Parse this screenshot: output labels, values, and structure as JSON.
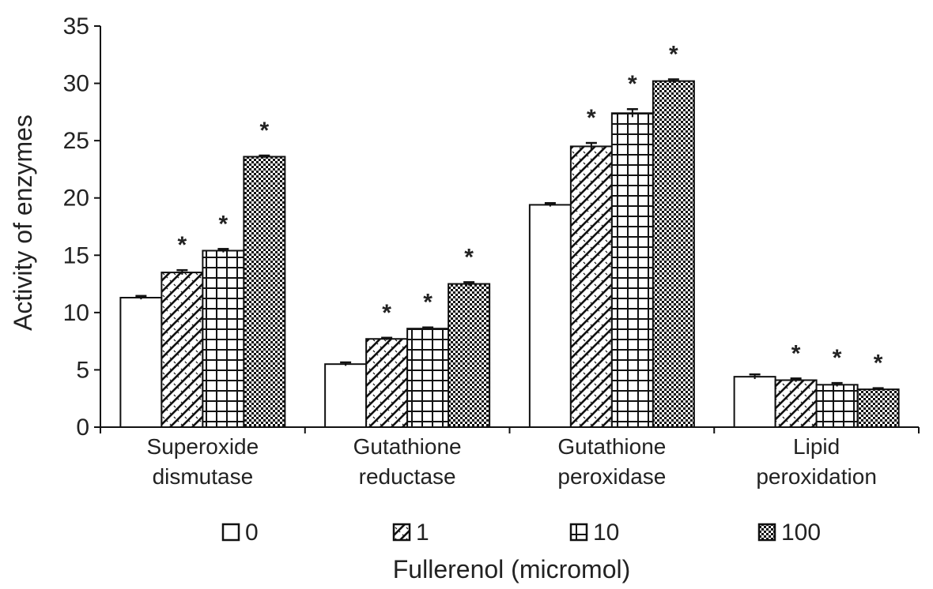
{
  "chart_data": {
    "type": "bar",
    "title": "",
    "ylabel": "Activity of enzymes",
    "xlabel": "Fullerenol (micromol)",
    "ylim": [
      0,
      35
    ],
    "yticks": [
      0,
      5,
      10,
      15,
      20,
      25,
      30,
      35
    ],
    "grid": false,
    "legend_position": "bottom",
    "categories": [
      [
        "Superoxide",
        "dismutase"
      ],
      [
        "Gutathione",
        "reductase"
      ],
      [
        "Gutathione",
        "peroxidase"
      ],
      [
        "Lipid",
        "peroxidation"
      ]
    ],
    "series": [
      {
        "name": "0",
        "pattern": "blank",
        "values": [
          11.3,
          5.5,
          19.4,
          4.4
        ],
        "errors": [
          0.15,
          0.15,
          0.15,
          0.2
        ],
        "significant": [
          false,
          false,
          false,
          false
        ]
      },
      {
        "name": "1",
        "pattern": "diagonal",
        "values": [
          13.5,
          7.7,
          24.5,
          4.1
        ],
        "errors": [
          0.2,
          0.1,
          0.3,
          0.15
        ],
        "significant": [
          true,
          true,
          true,
          true
        ]
      },
      {
        "name": "10",
        "pattern": "grid",
        "values": [
          15.4,
          8.6,
          27.4,
          3.7
        ],
        "errors": [
          0.15,
          0.1,
          0.35,
          0.15
        ],
        "significant": [
          true,
          true,
          true,
          true
        ]
      },
      {
        "name": "100",
        "pattern": "checker",
        "values": [
          23.6,
          12.5,
          30.2,
          3.3
        ],
        "errors": [
          0.1,
          0.15,
          0.15,
          0.1
        ],
        "significant": [
          true,
          true,
          true,
          true
        ]
      }
    ],
    "significance_marker": "*"
  }
}
